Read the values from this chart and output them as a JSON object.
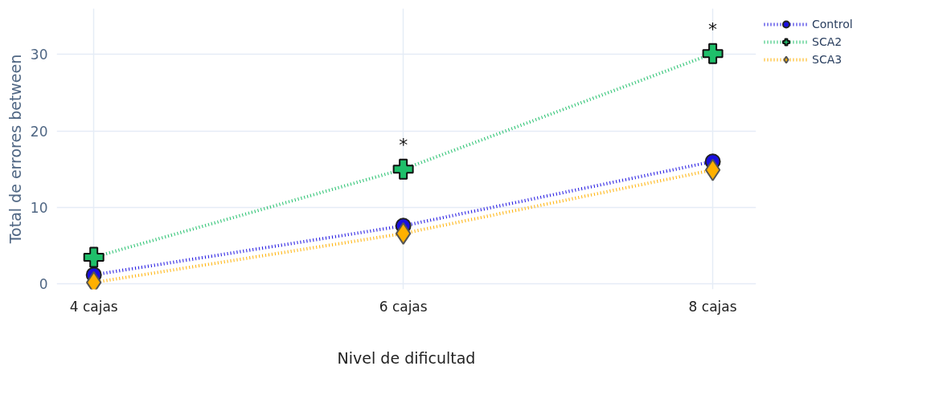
{
  "chart_data": {
    "type": "line",
    "xlabel": "Nivel de dificultad",
    "ylabel": "Total de errores between",
    "categories": [
      "4 cajas",
      "6 cajas",
      "8 cajas"
    ],
    "series": [
      {
        "name": "Control",
        "color": "#1a0fe0",
        "values": [
          1.2,
          7.6,
          16.0
        ],
        "marker": "circle"
      },
      {
        "name": "SCA2",
        "color": "#1fbf6a",
        "values": [
          3.5,
          15.0,
          30.1
        ],
        "marker": "cross"
      },
      {
        "name": "SCA3",
        "color": "#ffb000",
        "values": [
          0.2,
          6.6,
          14.9
        ],
        "marker": "diamond"
      }
    ],
    "ylim": [
      -0.7,
      36
    ],
    "yticks": [
      0,
      10,
      20,
      30
    ],
    "grid": true,
    "legend": "top right",
    "line_style": "dotted",
    "annotations": [
      {
        "text": "*",
        "x": "6 cajas",
        "y": 15.0
      },
      {
        "text": "*",
        "x": "8 cajas",
        "y": 30.1
      }
    ]
  }
}
